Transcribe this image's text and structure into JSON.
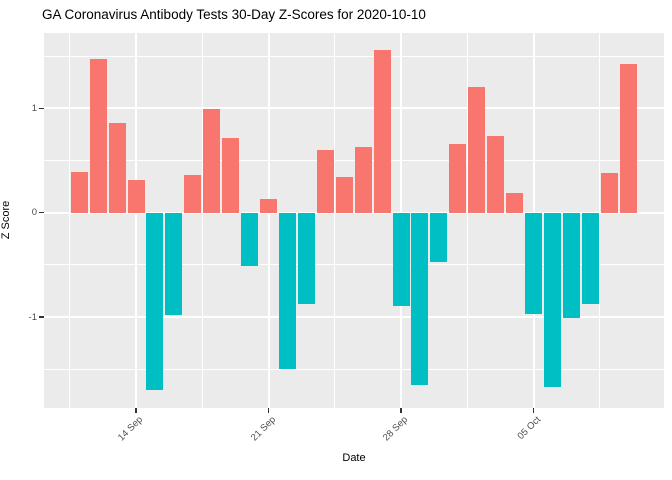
{
  "title": "GA Coronavirus Antibody Tests 30-Day Z-Scores for 2020-10-10",
  "chart_data": {
    "type": "bar",
    "title": "GA Coronavirus Antibody Tests 30-Day Z-Scores for 2020-10-10",
    "xlabel": "Date",
    "ylabel": "Z Score",
    "legend": "none",
    "grid": "on",
    "panel_bg": "#EBEBEB",
    "grid_color": "#FFFFFF",
    "tick_text_color": "#4D4D4D",
    "positive_color": "#F8766D",
    "negative_color": "#00BFC4",
    "ylim": [
      -1.87,
      1.72
    ],
    "y_major_ticks": [
      -1,
      0,
      1
    ],
    "y_minor_ticks": [
      -1.5,
      -0.5,
      0.5,
      1.5
    ],
    "x_tick_labels": [
      "14 Sep",
      "21 Sep",
      "28 Sep",
      "05 Oct"
    ],
    "x_tick_bar_indices": [
      3,
      10,
      17,
      24
    ],
    "values": [
      0.39,
      1.47,
      0.86,
      0.31,
      -1.7,
      -0.98,
      0.36,
      0.99,
      0.72,
      -0.51,
      0.13,
      -1.5,
      -0.87,
      0.6,
      0.34,
      0.63,
      1.56,
      -0.89,
      -1.65,
      -0.47,
      0.66,
      1.2,
      0.73,
      0.19,
      -0.97,
      -1.67,
      -1.01,
      -0.87,
      0.38,
      1.42
    ]
  }
}
